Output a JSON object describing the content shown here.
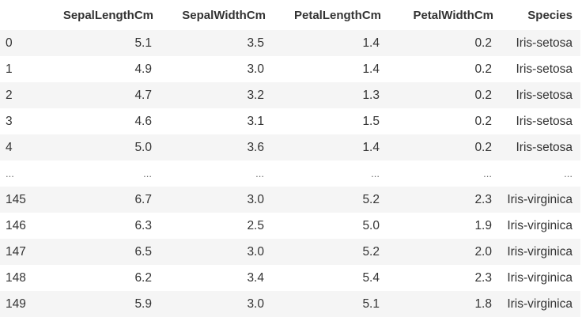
{
  "columns": {
    "index": "",
    "sepal_length": "SepalLengthCm",
    "sepal_width": "SepalWidthCm",
    "petal_length": "PetalLengthCm",
    "petal_width": "PetalWidthCm",
    "species": "Species"
  },
  "rows": [
    {
      "index": "0",
      "sepal_length": "5.1",
      "sepal_width": "3.5",
      "petal_length": "1.4",
      "petal_width": "0.2",
      "species": "Iris-setosa"
    },
    {
      "index": "1",
      "sepal_length": "4.9",
      "sepal_width": "3.0",
      "petal_length": "1.4",
      "petal_width": "0.2",
      "species": "Iris-setosa"
    },
    {
      "index": "2",
      "sepal_length": "4.7",
      "sepal_width": "3.2",
      "petal_length": "1.3",
      "petal_width": "0.2",
      "species": "Iris-setosa"
    },
    {
      "index": "3",
      "sepal_length": "4.6",
      "sepal_width": "3.1",
      "petal_length": "1.5",
      "petal_width": "0.2",
      "species": "Iris-setosa"
    },
    {
      "index": "4",
      "sepal_length": "5.0",
      "sepal_width": "3.6",
      "petal_length": "1.4",
      "petal_width": "0.2",
      "species": "Iris-setosa"
    },
    {
      "index": "...",
      "sepal_length": "...",
      "sepal_width": "...",
      "petal_length": "...",
      "petal_width": "...",
      "species": "..."
    },
    {
      "index": "145",
      "sepal_length": "6.7",
      "sepal_width": "3.0",
      "petal_length": "5.2",
      "petal_width": "2.3",
      "species": "Iris-virginica"
    },
    {
      "index": "146",
      "sepal_length": "6.3",
      "sepal_width": "2.5",
      "petal_length": "5.0",
      "petal_width": "1.9",
      "species": "Iris-virginica"
    },
    {
      "index": "147",
      "sepal_length": "6.5",
      "sepal_width": "3.0",
      "petal_length": "5.2",
      "petal_width": "2.0",
      "species": "Iris-virginica"
    },
    {
      "index": "148",
      "sepal_length": "6.2",
      "sepal_width": "3.4",
      "petal_length": "5.4",
      "petal_width": "2.3",
      "species": "Iris-virginica"
    },
    {
      "index": "149",
      "sepal_length": "5.9",
      "sepal_width": "3.0",
      "petal_length": "5.1",
      "petal_width": "1.8",
      "species": "Iris-virginica"
    }
  ]
}
